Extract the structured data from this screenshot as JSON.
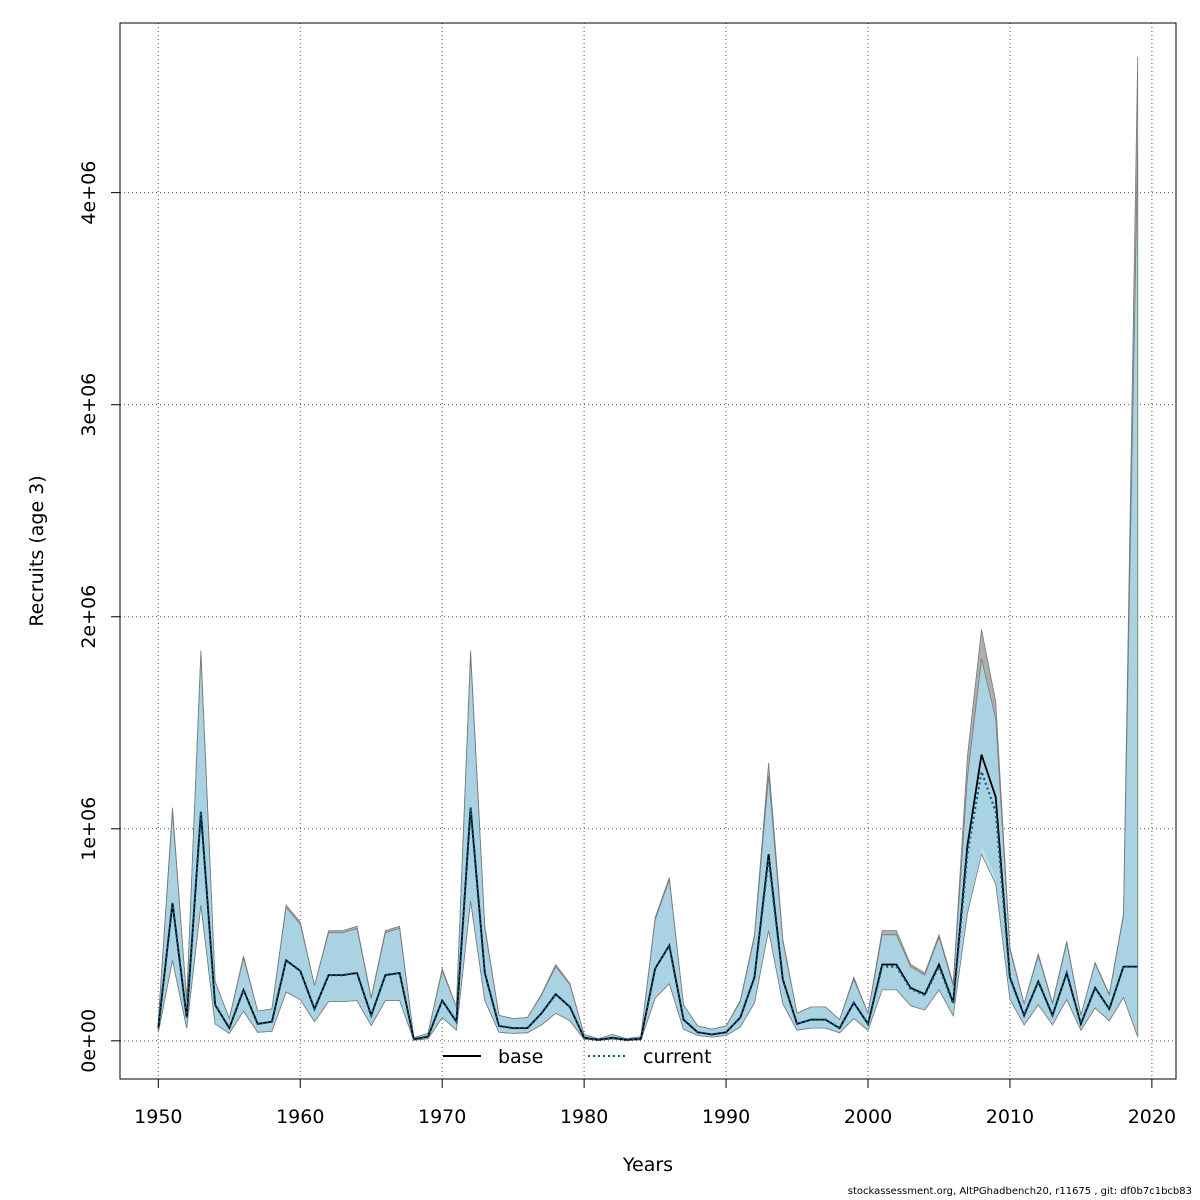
{
  "chart_data": {
    "type": "area",
    "xlabel": "Years",
    "ylabel": "Recruits (age 3)",
    "xlim": [
      1947.3,
      2021.7
    ],
    "ylim": [
      -180000,
      4800000
    ],
    "xticks": [
      1950,
      1960,
      1970,
      1980,
      1990,
      2000,
      2010,
      2020
    ],
    "xtick_labels": [
      "1950",
      "1960",
      "1970",
      "1980",
      "1990",
      "2000",
      "2010",
      "2020"
    ],
    "yticks": [
      0,
      1000000,
      2000000,
      3000000,
      4000000
    ],
    "ytick_labels": [
      "0e+00",
      "1e+06",
      "2e+06",
      "3e+06",
      "4e+06"
    ],
    "grid": true,
    "legend": {
      "position": "bottom",
      "entries": [
        {
          "label": "base",
          "color": "#000000",
          "style": "solid"
        },
        {
          "label": "current",
          "color": "#0b5a82",
          "style": "dotted"
        }
      ]
    },
    "footer": "stockassessment.org, AltPGhadbench20, r11675 , git: df0b7c1bcb83",
    "x": [
      1950,
      1951,
      1952,
      1953,
      1954,
      1955,
      1956,
      1957,
      1958,
      1959,
      1960,
      1961,
      1962,
      1963,
      1964,
      1965,
      1966,
      1967,
      1968,
      1969,
      1970,
      1971,
      1972,
      1973,
      1974,
      1975,
      1976,
      1977,
      1978,
      1979,
      1980,
      1981,
      1982,
      1983,
      1984,
      1985,
      1986,
      1987,
      1988,
      1989,
      1990,
      1991,
      1992,
      1993,
      1994,
      1995,
      1996,
      1997,
      1998,
      1999,
      2000,
      2001,
      2002,
      2003,
      2004,
      2005,
      2006,
      2007,
      2008,
      2009,
      2010,
      2011,
      2012,
      2013,
      2014,
      2015,
      2016,
      2017,
      2018,
      2019
    ],
    "series": [
      {
        "name": "base",
        "color": "#000000",
        "band_color": "#a0a0a0",
        "values": [
          60000,
          650000,
          110000,
          1080000,
          170000,
          60000,
          240000,
          80000,
          90000,
          380000,
          330000,
          150000,
          310000,
          310000,
          320000,
          120000,
          310000,
          320000,
          8000,
          20000,
          190000,
          90000,
          1100000,
          320000,
          70000,
          60000,
          60000,
          130000,
          220000,
          160000,
          15000,
          5000,
          15000,
          5000,
          10000,
          340000,
          450000,
          100000,
          40000,
          30000,
          40000,
          110000,
          300000,
          880000,
          290000,
          80000,
          100000,
          100000,
          60000,
          180000,
          80000,
          360000,
          360000,
          250000,
          220000,
          360000,
          180000,
          920000,
          1350000,
          1150000,
          300000,
          120000,
          280000,
          120000,
          320000,
          80000,
          250000,
          150000,
          350000,
          350000
        ],
        "low": [
          40000,
          380000,
          60000,
          640000,
          80000,
          35000,
          140000,
          40000,
          45000,
          230000,
          195000,
          90000,
          185000,
          185000,
          190000,
          72000,
          190000,
          190000,
          3000,
          10000,
          110000,
          50000,
          660000,
          190000,
          40000,
          35000,
          38000,
          75000,
          130000,
          95000,
          8000,
          2000,
          8000,
          2000,
          5000,
          200000,
          270000,
          55000,
          25000,
          18000,
          25000,
          65000,
          180000,
          530000,
          175000,
          50000,
          60000,
          60000,
          38000,
          105000,
          50000,
          245000,
          245000,
          170000,
          150000,
          245000,
          120000,
          620000,
          930000,
          780000,
          200000,
          75000,
          170000,
          75000,
          195000,
          50000,
          155000,
          95000,
          205000,
          20000
        ],
        "high": [
          90000,
          1100000,
          190000,
          1840000,
          280000,
          105000,
          400000,
          140000,
          150000,
          640000,
          560000,
          260000,
          520000,
          520000,
          540000,
          205000,
          520000,
          540000,
          15000,
          35000,
          340000,
          160000,
          1840000,
          540000,
          120000,
          105000,
          110000,
          220000,
          360000,
          270000,
          30000,
          10000,
          30000,
          10000,
          20000,
          580000,
          770000,
          170000,
          70000,
          55000,
          70000,
          190000,
          500000,
          1310000,
          480000,
          130000,
          160000,
          160000,
          100000,
          300000,
          130000,
          520000,
          520000,
          360000,
          320000,
          500000,
          270000,
          1340000,
          1940000,
          1600000,
          440000,
          175000,
          410000,
          180000,
          470000,
          120000,
          370000,
          220000,
          600000,
          4640000
        ]
      },
      {
        "name": "current",
        "color": "#0b5a82",
        "band_color": "#a8d8ec",
        "values": [
          60000,
          650000,
          110000,
          1080000,
          170000,
          60000,
          240000,
          80000,
          90000,
          380000,
          330000,
          150000,
          310000,
          310000,
          320000,
          120000,
          310000,
          320000,
          8000,
          20000,
          190000,
          90000,
          1100000,
          320000,
          70000,
          60000,
          60000,
          130000,
          220000,
          160000,
          15000,
          5000,
          15000,
          5000,
          10000,
          340000,
          450000,
          100000,
          40000,
          30000,
          40000,
          110000,
          300000,
          860000,
          290000,
          80000,
          100000,
          100000,
          60000,
          180000,
          80000,
          350000,
          350000,
          245000,
          215000,
          350000,
          175000,
          880000,
          1270000,
          1080000,
          295000,
          120000,
          280000,
          120000,
          320000,
          80000,
          250000,
          150000,
          350000,
          350000
        ],
        "low": [
          40000,
          380000,
          60000,
          640000,
          80000,
          35000,
          140000,
          40000,
          45000,
          230000,
          195000,
          90000,
          185000,
          185000,
          190000,
          72000,
          190000,
          190000,
          3000,
          10000,
          110000,
          50000,
          660000,
          190000,
          40000,
          35000,
          38000,
          75000,
          130000,
          95000,
          8000,
          2000,
          8000,
          2000,
          5000,
          200000,
          270000,
          55000,
          25000,
          18000,
          25000,
          65000,
          180000,
          520000,
          175000,
          50000,
          60000,
          60000,
          38000,
          105000,
          50000,
          240000,
          240000,
          165000,
          145000,
          240000,
          118000,
          600000,
          880000,
          740000,
          195000,
          75000,
          170000,
          75000,
          195000,
          50000,
          155000,
          95000,
          205000,
          20000
        ],
        "high": [
          90000,
          1080000,
          190000,
          1820000,
          280000,
          105000,
          390000,
          140000,
          150000,
          630000,
          550000,
          260000,
          510000,
          510000,
          530000,
          200000,
          510000,
          530000,
          15000,
          35000,
          330000,
          160000,
          1820000,
          530000,
          120000,
          105000,
          110000,
          215000,
          350000,
          265000,
          30000,
          10000,
          30000,
          10000,
          20000,
          570000,
          760000,
          170000,
          70000,
          55000,
          70000,
          185000,
          490000,
          1250000,
          470000,
          130000,
          160000,
          160000,
          100000,
          290000,
          130000,
          500000,
          500000,
          350000,
          310000,
          490000,
          260000,
          1240000,
          1800000,
          1520000,
          430000,
          175000,
          400000,
          175000,
          460000,
          120000,
          365000,
          215000,
          590000,
          4200000
        ]
      }
    ]
  }
}
